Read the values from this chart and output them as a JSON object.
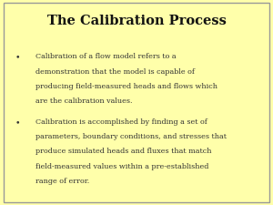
{
  "title": "The Calibration Process",
  "background_color": "#FFFFAA",
  "title_color": "#111111",
  "text_color": "#333333",
  "border_color": "#999999",
  "title_fontsize": 10.5,
  "body_fontsize": 5.8,
  "bullet1_lines": [
    "Calibration of a flow model refers to a",
    "demonstration that the model is capable of",
    "producing field-measured heads and flows which",
    "are the calibration values."
  ],
  "bullet2_lines": [
    "Calibration is accomplished by finding a set of",
    "parameters, boundary conditions, and stresses that",
    "produce simulated heads and fluxes that match",
    "field-measured values within a pre-established",
    "range of error."
  ]
}
